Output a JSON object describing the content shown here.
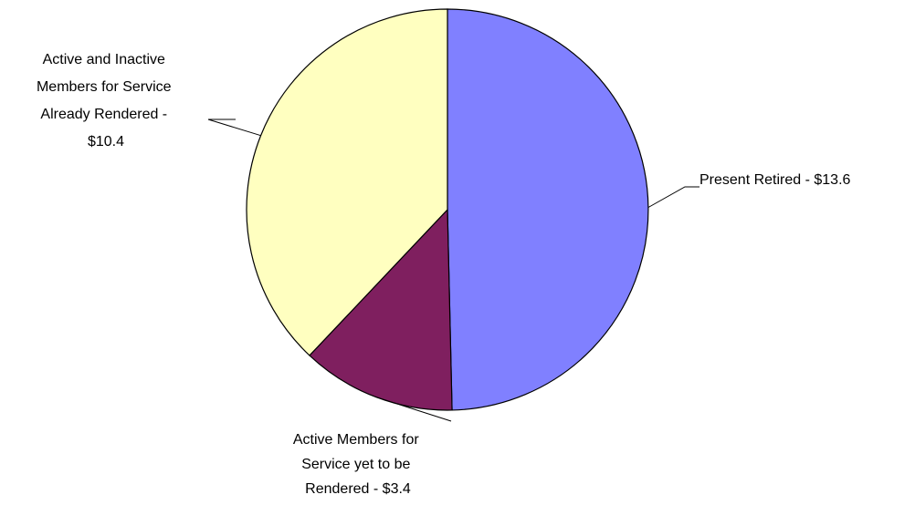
{
  "chart_data": {
    "type": "pie",
    "title": "",
    "slices": [
      {
        "label": "Present Retired - $13.6",
        "value": 13.6,
        "color": "#8080ff"
      },
      {
        "label": "Active Members for Service yet to be Rendered - $3.4",
        "value": 3.4,
        "color": "#7f1f5f"
      },
      {
        "label": "Active and Inactive Members for Service Already Rendered - $10.4",
        "value": 10.4,
        "color": "#ffffc0"
      }
    ],
    "label_lines": [
      [
        "Present Retired - $13.6"
      ],
      [
        "Active Members for",
        "Service yet to be",
        "Rendered - $3.4"
      ],
      [
        "Active and Inactive",
        "Members for Service",
        "Already Rendered -",
        "$10.4"
      ]
    ],
    "start_angle": "12 o'clock",
    "direction": "clockwise",
    "legend": "none"
  }
}
